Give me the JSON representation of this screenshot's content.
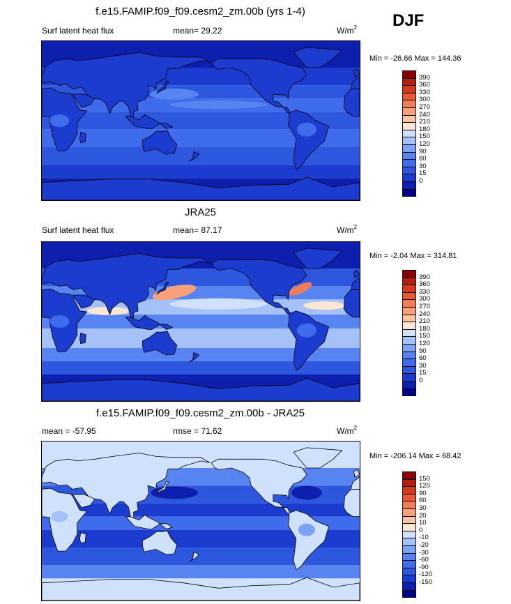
{
  "season": "DJF",
  "colors": {
    "levels": [
      "#00008b",
      "#0d1fae",
      "#1b3ccf",
      "#2e57e0",
      "#3f6cec",
      "#5884f1",
      "#7ca2f4",
      "#a4c2f8",
      "#cfe1fb",
      "#fde7d2",
      "#fbc5a3",
      "#f7a07a",
      "#f27c55",
      "#e85833",
      "#d63a1d",
      "#b5200d",
      "#8b0000"
    ]
  },
  "panels": [
    {
      "title": "f.e15.FAMIP.f09_f09.cesm2_zm.00b (yrs 1-4)",
      "left_label": "Surf latent heat flux",
      "stat_label": "mean=  29.22",
      "units": "W/m",
      "units_sup": "2",
      "minmax": "Min = -26.66 Max = 144.36",
      "colorbar_labels": [
        "390",
        "360",
        "330",
        "300",
        "270",
        "240",
        "210",
        "180",
        "150",
        "120",
        "90",
        "60",
        "30",
        "15",
        "0"
      ]
    },
    {
      "title": "JRA25",
      "left_label": "Surf latent heat flux",
      "stat_label": "mean=  87.17",
      "units": "W/m",
      "units_sup": "2",
      "minmax": "Min =  -2.04 Max = 314.81",
      "colorbar_labels": [
        "390",
        "360",
        "330",
        "300",
        "270",
        "240",
        "210",
        "180",
        "150",
        "120",
        "90",
        "60",
        "30",
        "15",
        "0"
      ]
    },
    {
      "title": "f.e15.FAMIP.f09_f09.cesm2_zm.00b - JRA25",
      "left_label": "mean = -57.95",
      "stat_label": "rmse =  71.62",
      "units": "W/m",
      "units_sup": "2",
      "minmax": "Min = -206.14 Max =  68.42",
      "colorbar_labels": [
        "150",
        "120",
        "90",
        "60",
        "30",
        "20",
        "10",
        "0",
        "-10",
        "-20",
        "-30",
        "-60",
        "-90",
        "-120",
        "-150"
      ]
    }
  ],
  "chart_data": [
    {
      "type": "heatmap",
      "title": "f.e15.FAMIP.f09_f09.cesm2_zm.00b (yrs 1-4)",
      "variable": "Surf latent heat flux",
      "units": "W/m2",
      "mean": 29.22,
      "min": -26.66,
      "max": 144.36,
      "colorbar_levels": [
        0,
        15,
        30,
        60,
        90,
        120,
        150,
        180,
        210,
        240,
        270,
        300,
        330,
        360,
        390
      ]
    },
    {
      "type": "heatmap",
      "title": "JRA25",
      "variable": "Surf latent heat flux",
      "units": "W/m2",
      "mean": 87.17,
      "min": -2.04,
      "max": 314.81,
      "colorbar_levels": [
        0,
        15,
        30,
        60,
        90,
        120,
        150,
        180,
        210,
        240,
        270,
        300,
        330,
        360,
        390
      ]
    },
    {
      "type": "heatmap",
      "title": "f.e15.FAMIP.f09_f09.cesm2_zm.00b - JRA25",
      "units": "W/m2",
      "mean": -57.95,
      "rmse": 71.62,
      "min": -206.14,
      "max": 68.42,
      "colorbar_levels": [
        -150,
        -120,
        -90,
        -60,
        -30,
        -20,
        -10,
        0,
        10,
        20,
        30,
        60,
        90,
        120,
        150
      ]
    }
  ]
}
